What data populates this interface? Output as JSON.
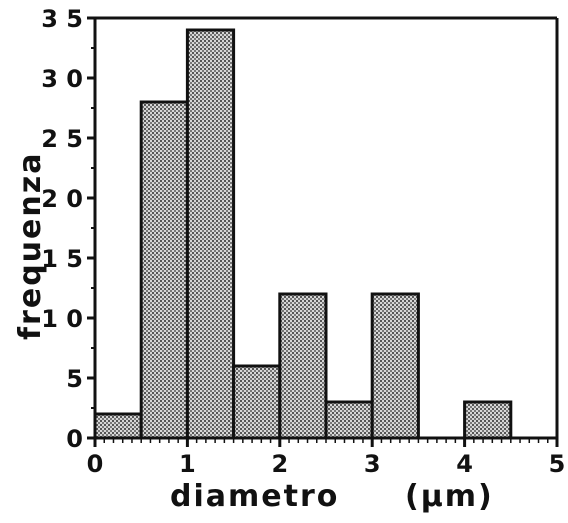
{
  "chart_data": {
    "type": "bar",
    "bin_edges": [
      0,
      0.5,
      1,
      1.5,
      2,
      2.5,
      3,
      3.5,
      4,
      4.5
    ],
    "values": [
      2,
      28,
      34,
      6,
      12,
      3,
      12,
      0,
      3
    ],
    "xlabel": "diametro",
    "xunit": "(μm)",
    "ylabel": "frequenza",
    "xlim": [
      0,
      5
    ],
    "ylim": [
      0,
      35
    ],
    "x_ticks": [
      "0",
      "1",
      "2",
      "3",
      "4",
      "5"
    ],
    "y_ticks": [
      "0",
      "5",
      "1 0",
      "1 5",
      "2 0",
      "2 5",
      "3 0",
      "3 5"
    ],
    "bar_fill": "stippled gray",
    "grid": false
  }
}
